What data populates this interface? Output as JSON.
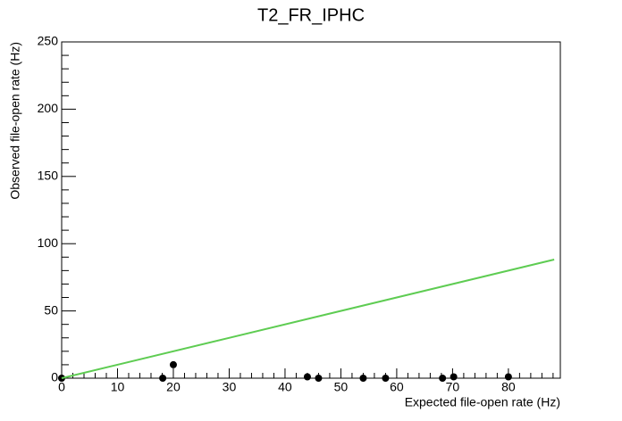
{
  "chart_data": {
    "type": "scatter",
    "title": "T2_FR_IPHC",
    "x_label": "Expected file-open rate (Hz)",
    "y_label": "Observed file-open rate (Hz)",
    "xlim": [
      0,
      89.3
    ],
    "ylim": [
      0,
      250
    ],
    "xticks": [
      0,
      10,
      20,
      30,
      40,
      50,
      60,
      70,
      80
    ],
    "yticks": [
      0,
      50,
      100,
      150,
      200,
      250
    ],
    "series": [
      {
        "type": "scatter",
        "color": "#000000",
        "x": [
          0,
          18.1,
          20,
          44,
          46,
          54,
          58,
          68.2,
          70.2,
          80
        ],
        "values": [
          0,
          0,
          10,
          1,
          0,
          0,
          0,
          0,
          1,
          1
        ]
      },
      {
        "type": "line",
        "color": "#5ecc52",
        "x": [
          0,
          88.2
        ],
        "values": [
          0,
          88.2
        ]
      }
    ]
  }
}
